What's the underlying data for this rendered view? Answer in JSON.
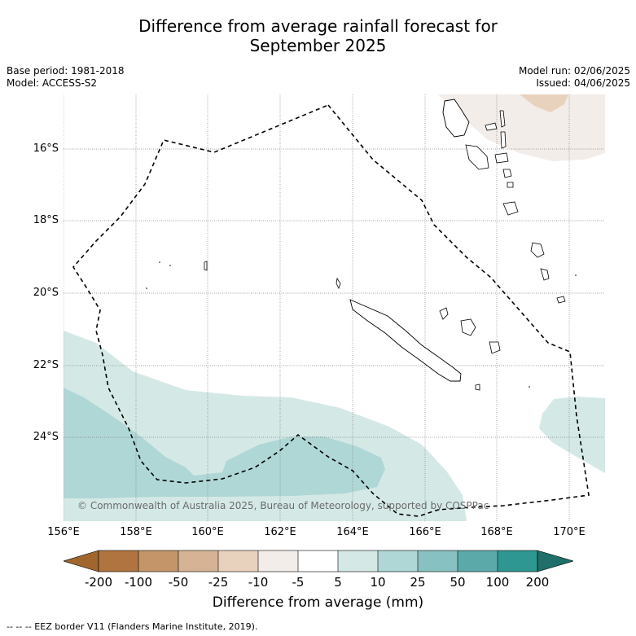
{
  "title_line1": "Difference from average rainfall forecast for",
  "title_line2": "September 2025",
  "meta": {
    "base_period": "Base period: 1981-2018",
    "model": "Model: ACCESS-S2",
    "model_run": "Model run: 02/06/2025",
    "issued": "Issued: 04/06/2025"
  },
  "map": {
    "lat_labels": [
      "16°S",
      "18°S",
      "20°S",
      "22°S",
      "24°S"
    ],
    "lon_labels": [
      "156°E",
      "158°E",
      "160°E",
      "162°E",
      "164°E",
      "166°E",
      "168°E",
      "170°E"
    ],
    "copyright": "© Commonwealth of Australia 2025, Bureau of Meteorology, supported by COSPPac"
  },
  "colorbar": {
    "title": "Difference from average (mm)",
    "labels": [
      "-200",
      "-100",
      "-50",
      "-25",
      "-10",
      "-5",
      "5",
      "10",
      "25",
      "50",
      "100",
      "200"
    ],
    "colors": [
      "#a0662c",
      "#b07440",
      "#c39568",
      "#d5b394",
      "#e8d2bd",
      "#f2ede9",
      "#ffffff",
      "#d4e9e6",
      "#afd7d6",
      "#88c1c1",
      "#5baaa9",
      "#2f9791",
      "#1f6f6b"
    ]
  },
  "footer": "--  --  -- EEZ border V11 (Flanders Marine Institute, 2019)."
}
